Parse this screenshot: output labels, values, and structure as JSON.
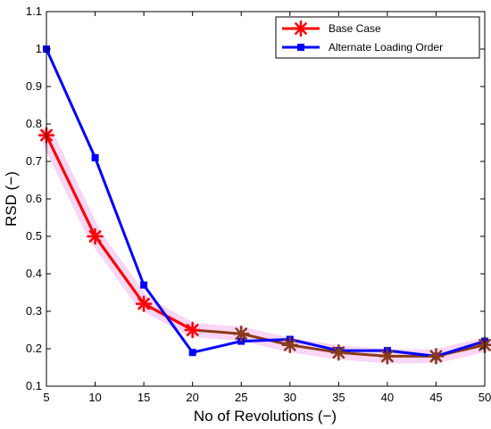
{
  "chart_data": {
    "type": "line",
    "xlabel": "No of Revolutions (−)",
    "ylabel": "RSD (−)",
    "xlim": [
      5,
      50
    ],
    "ylim": [
      0.1,
      1.1
    ],
    "xticks": [
      "5",
      "10",
      "15",
      "20",
      "25",
      "30",
      "35",
      "40",
      "45",
      "50"
    ],
    "yticks": [
      "0.1",
      "0.2",
      "0.3",
      "0.4",
      "0.5",
      "0.6",
      "0.7",
      "0.8",
      "0.9",
      "1",
      "1.1"
    ],
    "x": [
      5,
      10,
      15,
      20,
      25,
      30,
      35,
      40,
      45,
      50
    ],
    "grid": false,
    "legend_position": "top-right",
    "series": [
      {
        "name": "Base Case",
        "values": [
          0.77,
          0.5,
          0.32,
          0.25,
          0.24,
          0.21,
          0.19,
          0.18,
          0.18,
          0.21
        ],
        "color": "#ff0000",
        "marker": "asterisk"
      },
      {
        "name": "Alternate Loading Order",
        "values": [
          1.0,
          0.71,
          0.37,
          0.19,
          0.22,
          0.225,
          0.195,
          0.195,
          0.18,
          0.22
        ],
        "color": "#0000ff",
        "marker": "square"
      }
    ]
  }
}
